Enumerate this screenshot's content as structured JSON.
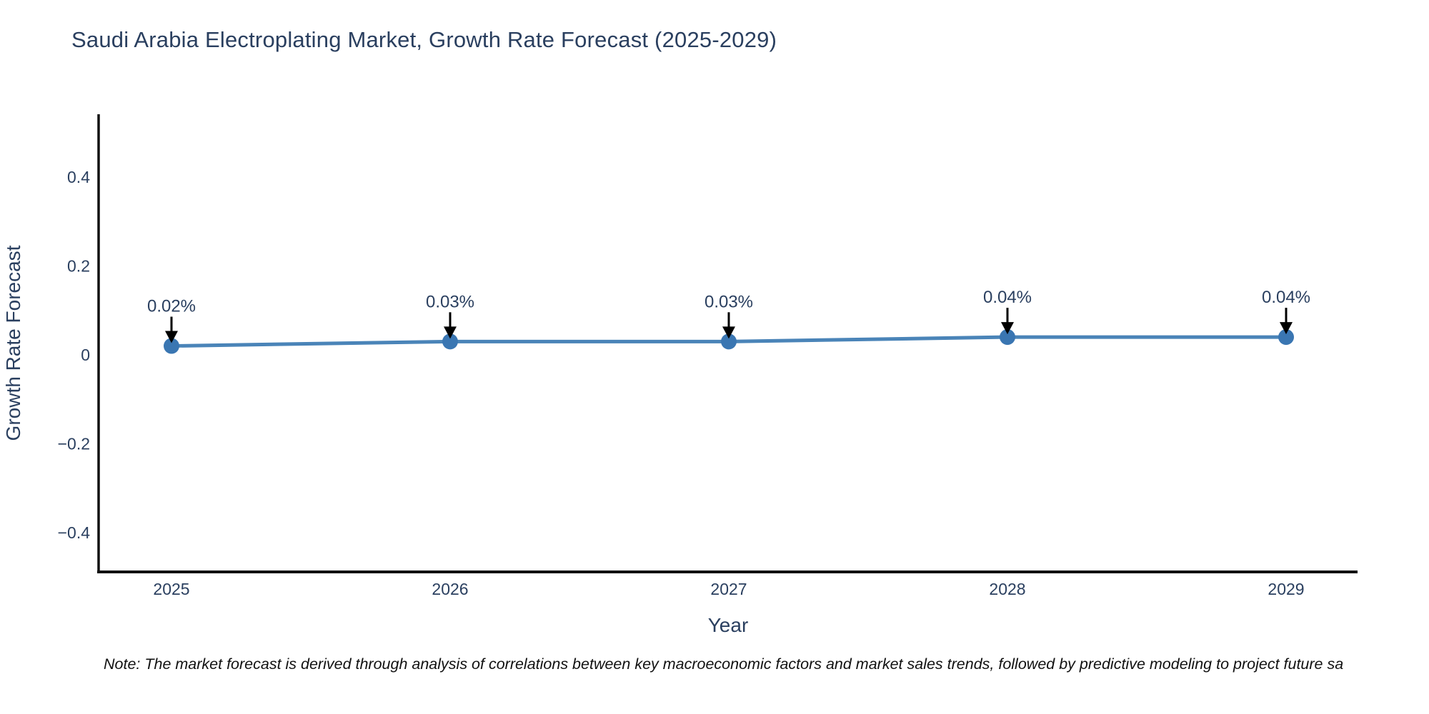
{
  "title": "Saudi Arabia Electroplating Market, Growth Rate Forecast (2025-2029)",
  "note": "Note: The market forecast is derived through analysis of correlations between key macroeconomic factors and market sales trends, followed by predictive modeling to project future sa",
  "chart_data": {
    "type": "line",
    "title": "Saudi Arabia Electroplating Market, Growth Rate Forecast (2025-2029)",
    "xlabel": "Year",
    "ylabel": "Growth Rate Forecast",
    "categories": [
      "2025",
      "2026",
      "2027",
      "2028",
      "2029"
    ],
    "series": [
      {
        "name": "Growth Rate Forecast",
        "values": [
          0.02,
          0.03,
          0.03,
          0.04,
          0.04
        ]
      }
    ],
    "point_labels": [
      "0.02%",
      "0.03%",
      "0.03%",
      "0.04%",
      "0.04%"
    ],
    "yticks": [
      {
        "v": 0.4,
        "label": "0.4"
      },
      {
        "v": 0.2,
        "label": "0.2"
      },
      {
        "v": 0,
        "label": "0"
      },
      {
        "v": -0.2,
        "label": "−0.2"
      },
      {
        "v": -0.4,
        "label": "−0.4"
      }
    ],
    "ylim": [
      -0.5,
      0.55
    ],
    "grid": false,
    "legend": false,
    "annotation_arrows": "down",
    "colors": {
      "line": "#4a84b8",
      "marker": "#3a76b2",
      "arrow": "#000000",
      "text": "#2a3f5f",
      "axis": "#111111",
      "background": "#ffffff"
    }
  }
}
